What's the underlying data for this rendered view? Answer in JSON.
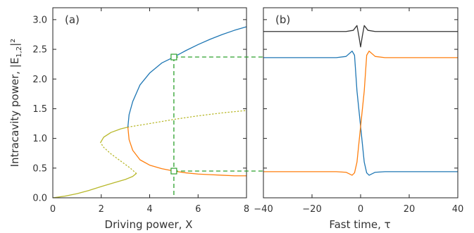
{
  "chart_data": [
    {
      "type": "line",
      "panel_label": "(a)",
      "xlabel": "Driving power, X",
      "ylabel": "Intracavity power, |E",
      "ylabel_sub": "1,2",
      "ylabel_tail": "|²",
      "xlim": [
        0,
        8
      ],
      "ylim": [
        0,
        3.2
      ],
      "xticks": [
        0,
        2,
        4,
        6,
        8
      ],
      "yticks": [
        0.0,
        0.5,
        1.0,
        1.5,
        2.0,
        2.5,
        3.0
      ],
      "ytick_labels": [
        "0.0",
        "0.5",
        "1.0",
        "1.5",
        "2.0",
        "2.5",
        "3.0"
      ],
      "grid": false,
      "series": [
        {
          "color": "#b8b82a",
          "style": "solid",
          "points": [
            [
              0,
              0
            ],
            [
              0.5,
              0.028
            ],
            [
              1.0,
              0.07
            ],
            [
              1.5,
              0.125
            ],
            [
              2.0,
              0.19
            ],
            [
              2.5,
              0.25
            ],
            [
              3.0,
              0.31
            ],
            [
              3.3,
              0.36
            ],
            [
              3.45,
              0.41
            ]
          ]
        },
        {
          "color": "#b8b82a",
          "style": "dotted",
          "points": [
            [
              3.45,
              0.41
            ],
            [
              3.2,
              0.5
            ],
            [
              2.8,
              0.62
            ],
            [
              2.4,
              0.74
            ],
            [
              2.1,
              0.85
            ],
            [
              1.97,
              0.93
            ]
          ]
        },
        {
          "color": "#b8b82a",
          "style": "solid",
          "points": [
            [
              1.97,
              0.93
            ],
            [
              2.1,
              1.02
            ],
            [
              2.4,
              1.1
            ],
            [
              2.8,
              1.16
            ],
            [
              3.1,
              1.19
            ]
          ]
        },
        {
          "color": "#b8b82a",
          "style": "dotted",
          "points": [
            [
              3.1,
              1.19
            ],
            [
              4,
              1.25
            ],
            [
              5,
              1.32
            ],
            [
              6,
              1.38
            ],
            [
              7,
              1.43
            ],
            [
              8,
              1.47
            ]
          ]
        },
        {
          "color": "#1f77b4",
          "style": "solid",
          "points": [
            [
              3.1,
              1.19
            ],
            [
              3.15,
              1.4
            ],
            [
              3.3,
              1.62
            ],
            [
              3.6,
              1.9
            ],
            [
              4.0,
              2.1
            ],
            [
              4.5,
              2.27
            ],
            [
              5.0,
              2.37
            ],
            [
              5.5,
              2.48
            ],
            [
              6.0,
              2.58
            ],
            [
              6.5,
              2.67
            ],
            [
              7.0,
              2.75
            ],
            [
              7.5,
              2.82
            ],
            [
              8.0,
              2.88
            ]
          ]
        },
        {
          "color": "#ff7f0e",
          "style": "solid",
          "points": [
            [
              3.1,
              1.19
            ],
            [
              3.15,
              0.98
            ],
            [
              3.3,
              0.8
            ],
            [
              3.6,
              0.64
            ],
            [
              4.0,
              0.55
            ],
            [
              4.5,
              0.49
            ],
            [
              5.0,
              0.45
            ],
            [
              5.5,
              0.42
            ],
            [
              6.0,
              0.4
            ],
            [
              6.5,
              0.39
            ],
            [
              7.0,
              0.38
            ],
            [
              7.5,
              0.37
            ],
            [
              8.0,
              0.37
            ]
          ]
        }
      ],
      "markers": [
        {
          "x": 5,
          "y": 2.37,
          "color": "#2ca02c"
        },
        {
          "x": 5,
          "y": 0.45,
          "color": "#2ca02c"
        }
      ],
      "guide_x": 5,
      "guide_color": "#2ca02c"
    },
    {
      "type": "line",
      "panel_label": "(b)",
      "xlabel": "Fast time, τ",
      "xlim": [
        -40,
        40
      ],
      "ylim": [
        0,
        3.2
      ],
      "xticks": [
        -40,
        -20,
        0,
        20,
        40
      ],
      "xtick_labels": [
        "−40",
        "−20",
        "0",
        "20",
        "40"
      ],
      "grid": false,
      "series": [
        {
          "color": "#333333",
          "style": "solid",
          "points": [
            [
              -40,
              2.8
            ],
            [
              -6,
              2.8
            ],
            [
              -3,
              2.82
            ],
            [
              -1.5,
              2.9
            ],
            [
              -0.7,
              2.72
            ],
            [
              0,
              2.54
            ],
            [
              0.7,
              2.72
            ],
            [
              1.5,
              2.9
            ],
            [
              3,
              2.82
            ],
            [
              6,
              2.8
            ],
            [
              40,
              2.8
            ]
          ]
        },
        {
          "color": "#1f77b4",
          "style": "solid",
          "points": [
            [
              -40,
              2.36
            ],
            [
              -10,
              2.36
            ],
            [
              -6,
              2.38
            ],
            [
              -3.5,
              2.47
            ],
            [
              -2.5,
              2.4
            ],
            [
              -1.5,
              1.8
            ],
            [
              0,
              1.2
            ],
            [
              1.5,
              0.6
            ],
            [
              2.5,
              0.42
            ],
            [
              3.5,
              0.38
            ],
            [
              6,
              0.43
            ],
            [
              10,
              0.44
            ],
            [
              40,
              0.44
            ]
          ]
        },
        {
          "color": "#ff7f0e",
          "style": "solid",
          "points": [
            [
              -40,
              0.44
            ],
            [
              -10,
              0.44
            ],
            [
              -6,
              0.43
            ],
            [
              -3.5,
              0.38
            ],
            [
              -2.5,
              0.42
            ],
            [
              -1.5,
              0.6
            ],
            [
              0,
              1.2
            ],
            [
              1.5,
              1.8
            ],
            [
              2.5,
              2.4
            ],
            [
              3.5,
              2.47
            ],
            [
              6,
              2.38
            ],
            [
              10,
              2.36
            ],
            [
              40,
              2.36
            ]
          ]
        }
      ]
    }
  ]
}
